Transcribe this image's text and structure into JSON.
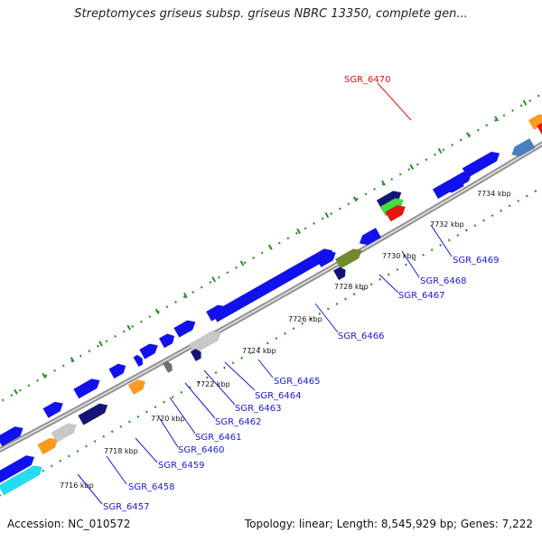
{
  "title": "Streptomyces griseus subsp. griseus NBRC 13350, complete gen...",
  "footer": {
    "accession": "Accession: NC_010572",
    "summary": "Topology: linear; Length: 8,545,929 bp; Genes: 7,222"
  },
  "colors": {
    "blue": "#1111ee",
    "navy": "#141478",
    "orange": "#ff9a1e",
    "cyan": "#22ddf0",
    "red": "#ee1111",
    "green": "#44dd44",
    "olive": "#6e8c2a",
    "lightgray": "#c8c8c8",
    "darkgray": "#707070",
    "steelblue": "#4a7fc0",
    "label_default": "#1a1acc",
    "label_highlight": "#dd1111",
    "backbone": "#8c8c8c",
    "tick_mark": "#2e8b2e"
  },
  "scale_ticks": [
    "7716 kbp",
    "7718 kbp",
    "7720 kbp",
    "7722 kbp",
    "7724 kbp",
    "7726 kbp",
    "7728 kbp",
    "7730 kbp",
    "7732 kbp",
    "7734 kbp"
  ],
  "gene_labels": [
    {
      "name": "SGR_6457",
      "highlight": false
    },
    {
      "name": "SGR_6458",
      "highlight": false
    },
    {
      "name": "SGR_6459",
      "highlight": false
    },
    {
      "name": "SGR_6460",
      "highlight": false
    },
    {
      "name": "SGR_6461",
      "highlight": false
    },
    {
      "name": "SGR_6462",
      "highlight": false
    },
    {
      "name": "SGR_6463",
      "highlight": false
    },
    {
      "name": "SGR_6464",
      "highlight": false
    },
    {
      "name": "SGR_6465",
      "highlight": false
    },
    {
      "name": "SGR_6466",
      "highlight": false
    },
    {
      "name": "SGR_6467",
      "highlight": false
    },
    {
      "name": "SGR_6468",
      "highlight": false
    },
    {
      "name": "SGR_6469",
      "highlight": false
    },
    {
      "name": "SGR_6470",
      "highlight": true
    }
  ]
}
